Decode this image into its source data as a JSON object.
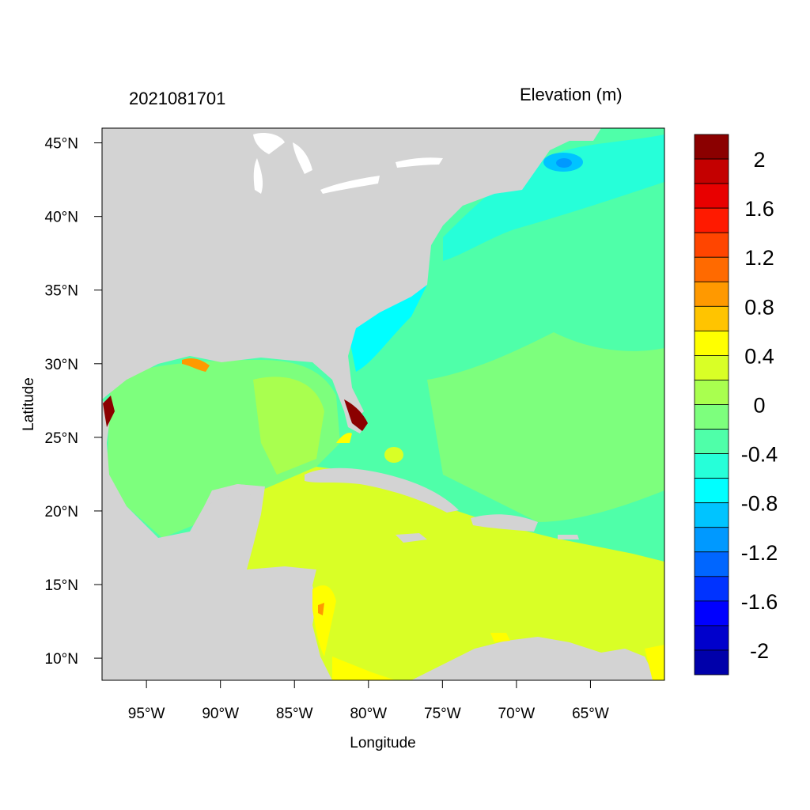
{
  "title_left": "2021081701",
  "title_right": "Elevation (m)",
  "map": {
    "xlabel": "Longitude",
    "ylabel": "Latitude",
    "lon_range": [
      -98,
      -60
    ],
    "lat_range": [
      8.5,
      46
    ],
    "x_ticks": [
      {
        "lon": -95,
        "label": "95°W"
      },
      {
        "lon": -90,
        "label": "90°W"
      },
      {
        "lon": -85,
        "label": "85°W"
      },
      {
        "lon": -80,
        "label": "80°W"
      },
      {
        "lon": -75,
        "label": "75°W"
      },
      {
        "lon": -70,
        "label": "70°W"
      },
      {
        "lon": -65,
        "label": "65°W"
      }
    ],
    "y_ticks": [
      {
        "lat": 45,
        "label": "45°N"
      },
      {
        "lat": 40,
        "label": "40°N"
      },
      {
        "lat": 35,
        "label": "35°N"
      },
      {
        "lat": 30,
        "label": "30°N"
      },
      {
        "lat": 25,
        "label": "25°N"
      },
      {
        "lat": 20,
        "label": "20°N"
      },
      {
        "lat": 15,
        "label": "15°N"
      },
      {
        "lat": 10,
        "label": "10°N"
      }
    ],
    "land_color": "#d3d3d3"
  },
  "colorbar": {
    "colors": [
      "#8b0000",
      "#c40000",
      "#e80000",
      "#ff1a00",
      "#ff4500",
      "#ff6a00",
      "#ff9900",
      "#ffc400",
      "#ffff00",
      "#d9ff26",
      "#a9ff4f",
      "#7dff7d",
      "#4fffa9",
      "#26ffd9",
      "#00ffff",
      "#00c4ff",
      "#0099ff",
      "#0066ff",
      "#0033ff",
      "#0000ff",
      "#0000cc",
      "#0000aa"
    ],
    "labels": [
      {
        "value": 2,
        "label": "2"
      },
      {
        "value": 1.6,
        "label": "1.6"
      },
      {
        "value": 1.2,
        "label": "1.2"
      },
      {
        "value": 0.8,
        "label": "0.8"
      },
      {
        "value": 0.4,
        "label": "0.4"
      },
      {
        "value": 0,
        "label": "0"
      },
      {
        "value": -0.4,
        "label": "-0.4"
      },
      {
        "value": -0.8,
        "label": "-0.8"
      },
      {
        "value": -1.2,
        "label": "-1.2"
      },
      {
        "value": -1.6,
        "label": "-1.6"
      },
      {
        "value": -2,
        "label": "-2"
      }
    ]
  }
}
